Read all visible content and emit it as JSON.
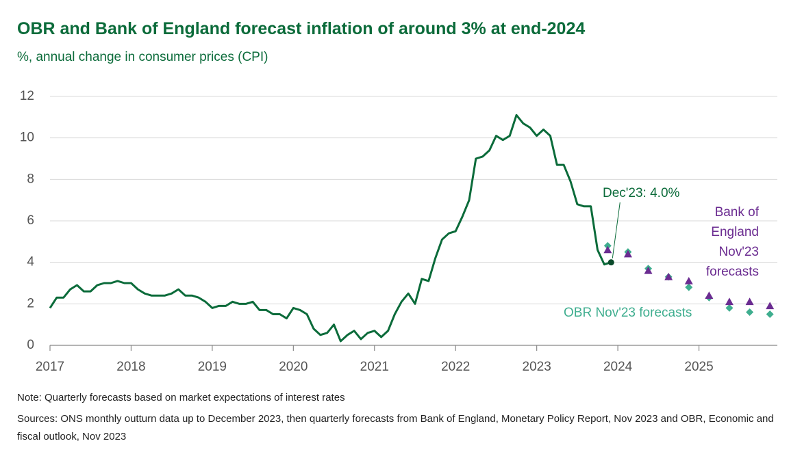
{
  "chart_data": {
    "type": "line",
    "title": "OBR and Bank of England forecast inflation of around 3% at end-2024",
    "subtitle": "%, annual change in consumer prices (CPI)",
    "xlim": [
      2017,
      2026
    ],
    "xticks": [
      2017,
      2018,
      2019,
      2020,
      2021,
      2022,
      2023,
      2024,
      2025
    ],
    "ylim": [
      0,
      12
    ],
    "yticks": [
      0,
      2,
      4,
      6,
      8,
      10,
      12
    ],
    "grid": true,
    "series": [
      {
        "color": "#0b6b3a",
        "marker": "line",
        "x": [
          2017.0,
          2017.083,
          2017.167,
          2017.25,
          2017.333,
          2017.417,
          2017.5,
          2017.583,
          2017.667,
          2017.75,
          2017.833,
          2017.917,
          2018.0,
          2018.083,
          2018.167,
          2018.25,
          2018.333,
          2018.417,
          2018.5,
          2018.583,
          2018.667,
          2018.75,
          2018.833,
          2018.917,
          2019.0,
          2019.083,
          2019.167,
          2019.25,
          2019.333,
          2019.417,
          2019.5,
          2019.583,
          2019.667,
          2019.75,
          2019.833,
          2019.917,
          2020.0,
          2020.083,
          2020.167,
          2020.25,
          2020.333,
          2020.417,
          2020.5,
          2020.583,
          2020.667,
          2020.75,
          2020.833,
          2020.917,
          2021.0,
          2021.083,
          2021.167,
          2021.25,
          2021.333,
          2021.417,
          2021.5,
          2021.583,
          2021.667,
          2021.75,
          2021.833,
          2021.917,
          2022.0,
          2022.083,
          2022.167,
          2022.25,
          2022.333,
          2022.417,
          2022.5,
          2022.583,
          2022.667,
          2022.75,
          2022.833,
          2022.917,
          2023.0,
          2023.083,
          2023.167,
          2023.25,
          2023.333,
          2023.417,
          2023.5,
          2023.583,
          2023.667,
          2023.75,
          2023.833,
          2023.917
        ],
        "values": [
          1.8,
          2.3,
          2.3,
          2.7,
          2.9,
          2.6,
          2.6,
          2.9,
          3.0,
          3.0,
          3.1,
          3.0,
          3.0,
          2.7,
          2.5,
          2.4,
          2.4,
          2.4,
          2.5,
          2.7,
          2.4,
          2.4,
          2.3,
          2.1,
          1.8,
          1.9,
          1.9,
          2.1,
          2.0,
          2.0,
          2.1,
          1.7,
          1.7,
          1.5,
          1.5,
          1.3,
          1.8,
          1.7,
          1.5,
          0.8,
          0.5,
          0.6,
          1.0,
          0.2,
          0.5,
          0.7,
          0.3,
          0.6,
          0.7,
          0.4,
          0.7,
          1.5,
          2.1,
          2.5,
          2.0,
          3.2,
          3.1,
          4.2,
          5.1,
          5.4,
          5.5,
          6.2,
          7.0,
          9.0,
          9.1,
          9.4,
          10.1,
          9.9,
          10.1,
          11.1,
          10.7,
          10.5,
          10.1,
          10.4,
          10.1,
          8.7,
          8.7,
          7.9,
          6.8,
          6.7,
          6.7,
          4.6,
          3.9,
          4.0
        ]
      },
      {
        "name": "OBR Nov'23 forecasts",
        "color": "#3fae8f",
        "marker": "diamond",
        "x": [
          2023.875,
          2024.125,
          2024.375,
          2024.625,
          2024.875,
          2025.125,
          2025.375,
          2025.625,
          2025.875
        ],
        "values": [
          4.8,
          4.5,
          3.7,
          3.3,
          2.8,
          2.3,
          1.8,
          1.6,
          1.5
        ]
      },
      {
        "name": "Bank of England Nov'23 forecasts",
        "color": "#6b2c91",
        "marker": "triangle",
        "x": [
          2023.875,
          2024.125,
          2024.375,
          2024.625,
          2024.875,
          2025.125,
          2025.375,
          2025.625,
          2025.875
        ],
        "values": [
          4.6,
          4.4,
          3.6,
          3.3,
          3.1,
          2.4,
          2.1,
          2.1,
          1.9
        ]
      }
    ],
    "annotation": "Dec'23: 4.0%",
    "note": "Note: Quarterly forecasts based on market expectations of interest rates",
    "sources": "Sources: ONS monthly outturn data up to December 2023, then quarterly forecasts from Bank of England, Monetary Policy Report, Nov 2023 and OBR, Economic and fiscal outlook, Nov 2023"
  }
}
